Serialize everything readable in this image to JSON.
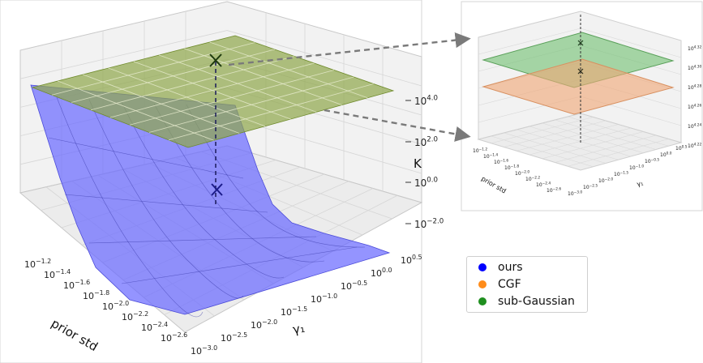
{
  "chart_data": [
    {
      "type": "surface3d",
      "zscale": "log",
      "xlabel": "prior std",
      "ylabel": "γ₁",
      "zlabel": "K",
      "x_ticks": [
        "10−1.2",
        "10−1.4",
        "10−1.6",
        "10−1.8",
        "10−2.0",
        "10−2.2",
        "10−2.4",
        "10−2.6"
      ],
      "y_ticks": [
        "10−3.0",
        "10−2.5",
        "10−2.0",
        "10−1.5",
        "10−1.0",
        "10−0.5",
        "100.0",
        "100.5"
      ],
      "z_ticks": [
        "104.0",
        "102.0",
        "100.0",
        "10−2.0"
      ],
      "series": [
        {
          "name": "ours",
          "color": "#3b3bff",
          "log10_range": [
            -2.8,
            5.0
          ]
        },
        {
          "name": "sub-Gaussian",
          "color": "#2e8b2e",
          "log10_value": 4.33
        }
      ],
      "markers": [
        {
          "series": "sub-Gaussian",
          "log10_value": 4.33
        },
        {
          "series": "ours",
          "log10_value": -0.1
        }
      ]
    },
    {
      "type": "surface3d",
      "zscale": "log",
      "xlabel": "prior std",
      "ylabel": "γ₁",
      "zlabel": "K",
      "x_ticks": [
        "10−1.2",
        "10−1.4",
        "10−1.6",
        "10−1.8",
        "10−2.0",
        "10−2.2",
        "10−2.4",
        "10−2.6"
      ],
      "y_ticks": [
        "10−3.0",
        "10−2.5",
        "10−2.0",
        "10−1.5",
        "10−1.0",
        "10−0.5",
        "100.0",
        "100.5"
      ],
      "z_ticks": [
        "104.32",
        "104.30",
        "104.28",
        "104.26",
        "104.24",
        "104.22"
      ],
      "series": [
        {
          "name": "sub-Gaussian",
          "color": "#2e8b2e",
          "log10_value": 4.3
        },
        {
          "name": "CGF",
          "color": "#ff8c2e",
          "log10_value": 4.27
        }
      ]
    }
  ],
  "legend": [
    {
      "label": "ours",
      "color": "#0000ff"
    },
    {
      "label": "CGF",
      "color": "#ff8c1a"
    },
    {
      "label": "sub-Gaussian",
      "color": "#1f8f1f"
    }
  ]
}
